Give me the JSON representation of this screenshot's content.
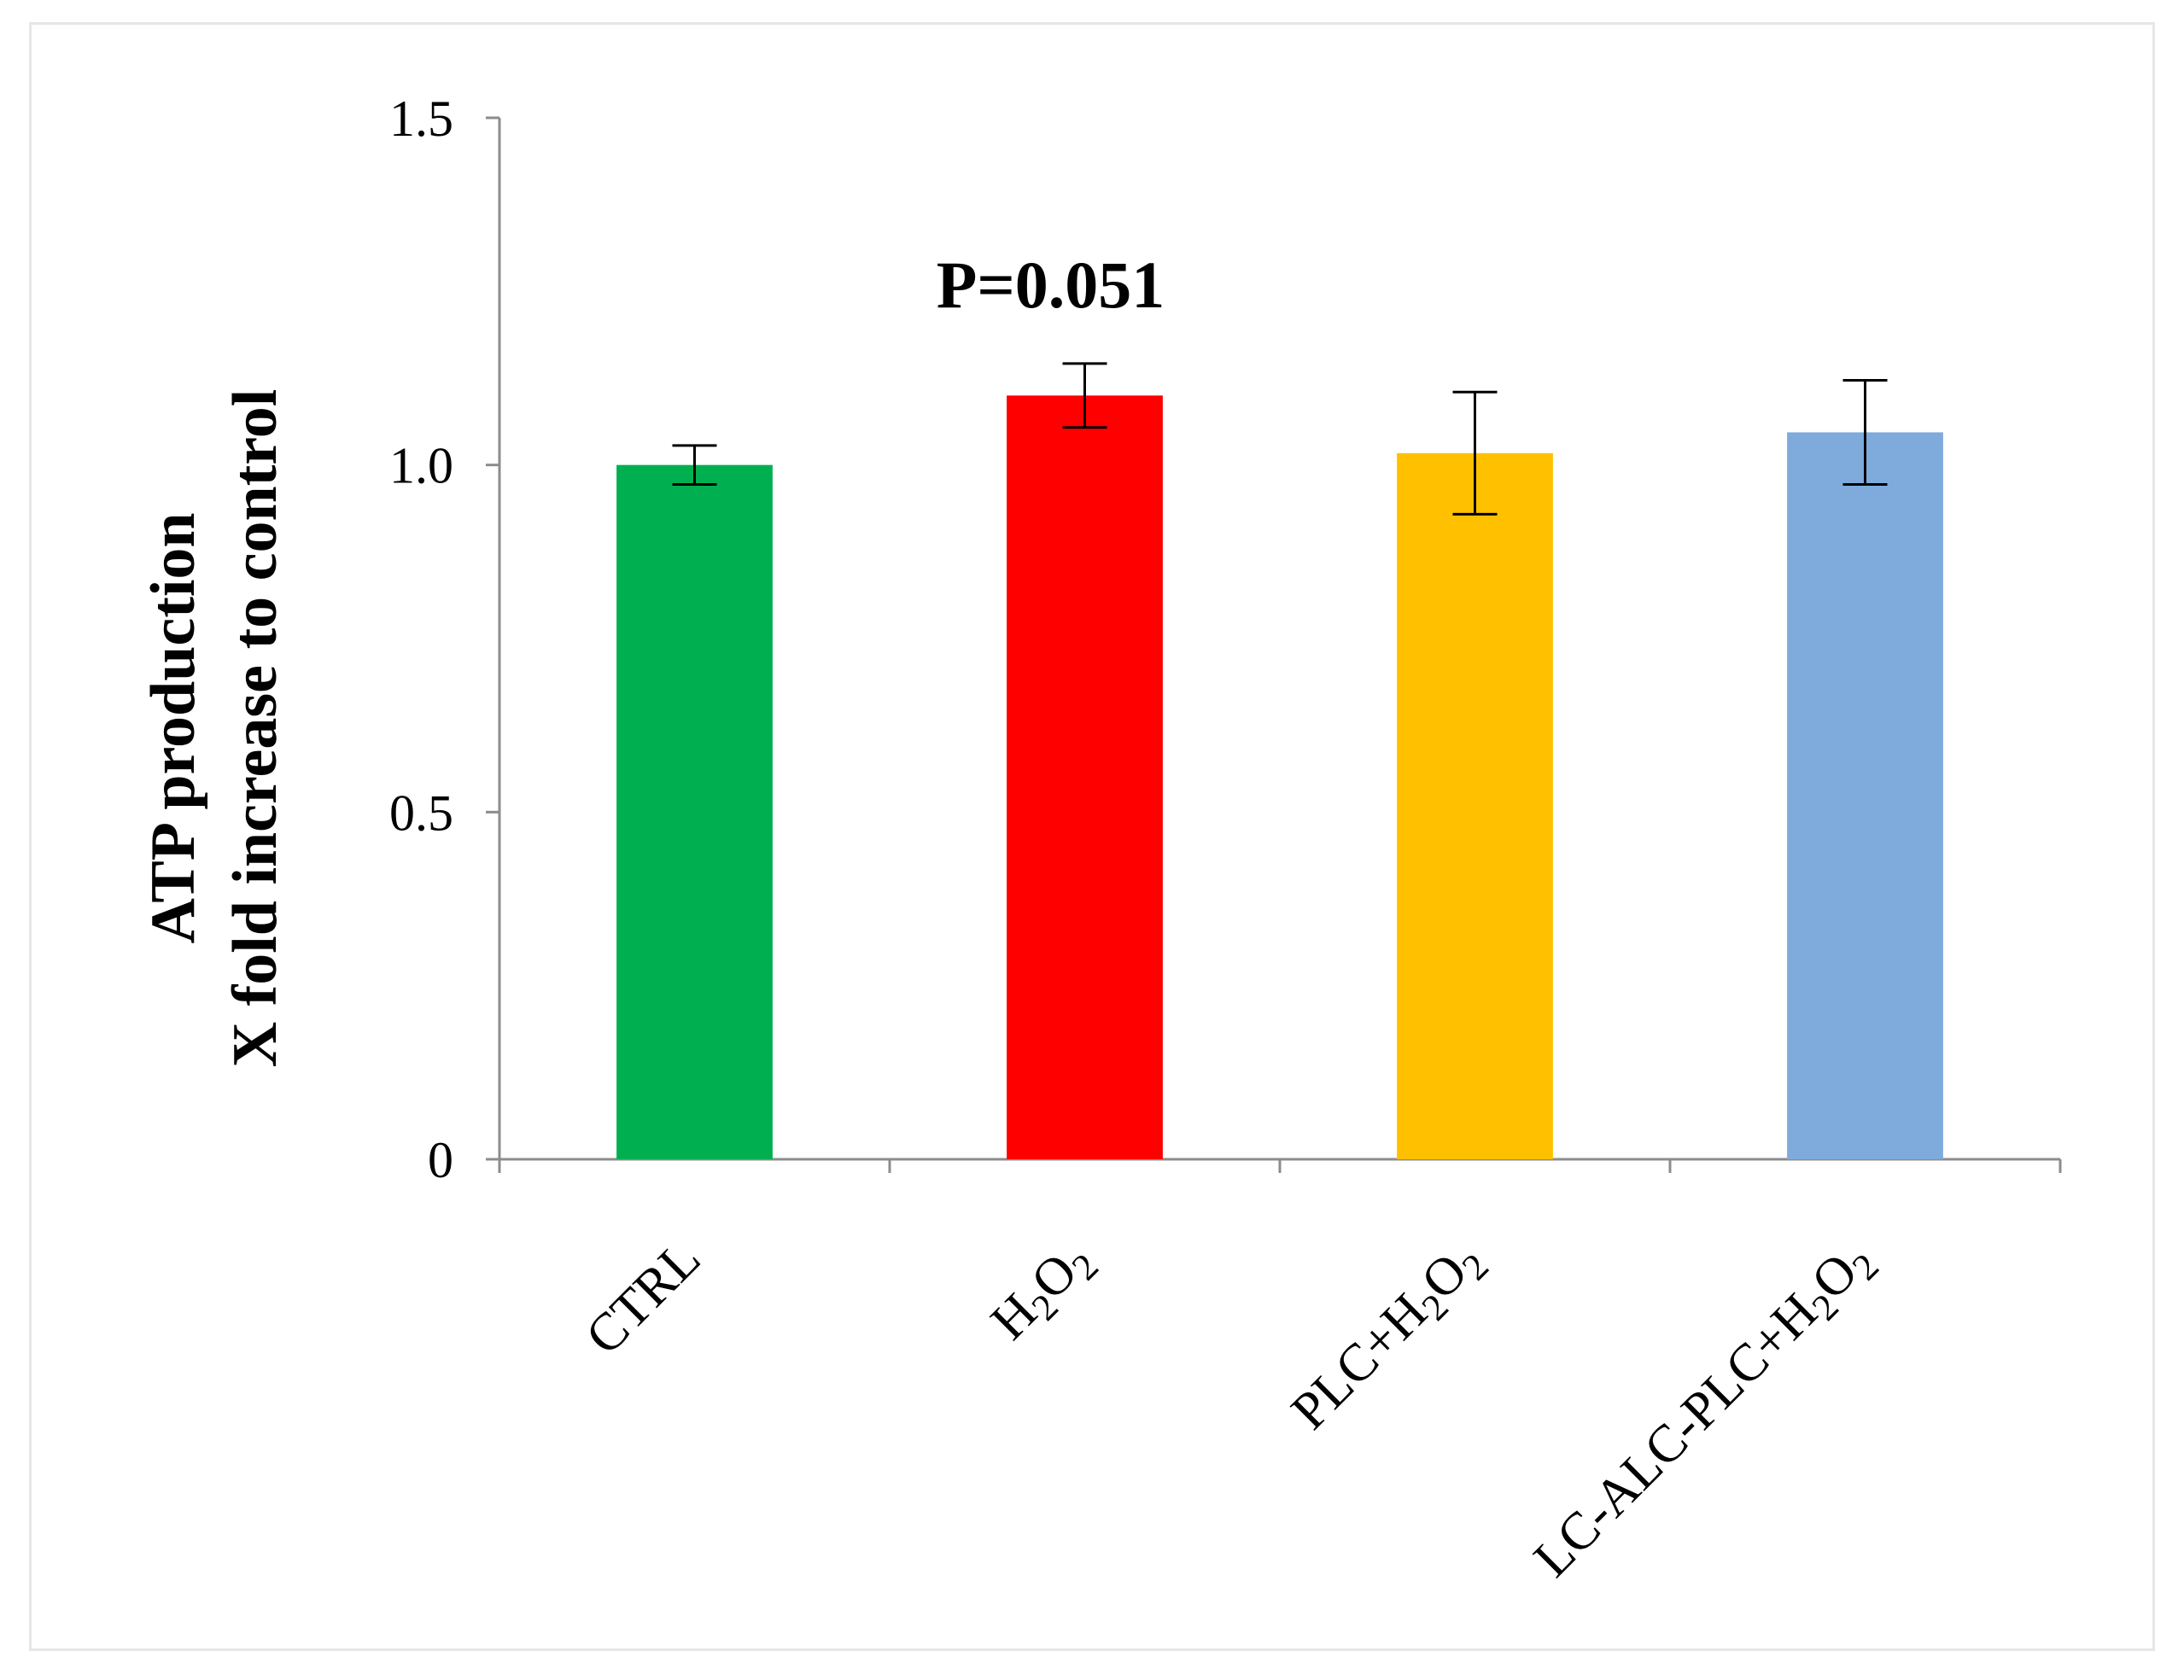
{
  "chart_data": {
    "type": "bar",
    "title": "",
    "xlabel": "",
    "ylabel": [
      "ATP production",
      "X fold increase to control"
    ],
    "ylim": [
      0,
      1.5
    ],
    "yticks": [
      0,
      0.5,
      1.0,
      1.5
    ],
    "ytick_labels": [
      "0",
      "0.5",
      "1.0",
      "1.5"
    ],
    "categories": [
      "CTRL",
      "H2O2",
      "PLC+H2O2",
      "LC-ALC-PLC+H2O2"
    ],
    "category_labels": [
      [
        {
          "t": "CTRL",
          "s": false
        }
      ],
      [
        {
          "t": "H",
          "s": false
        },
        {
          "t": "2",
          "s": true
        },
        {
          "t": "O",
          "s": false
        },
        {
          "t": "2",
          "s": true
        }
      ],
      [
        {
          "t": "PLC+H",
          "s": false
        },
        {
          "t": "2",
          "s": true
        },
        {
          "t": "O",
          "s": false
        },
        {
          "t": "2",
          "s": true
        }
      ],
      [
        {
          "t": "LC-ALC-PLC+H",
          "s": false
        },
        {
          "t": "2",
          "s": true
        },
        {
          "t": "O",
          "s": false
        },
        {
          "t": "2",
          "s": true
        }
      ]
    ],
    "values": [
      1.0,
      1.1,
      1.017,
      1.047
    ],
    "error": [
      0.028,
      0.046,
      0.088,
      0.075
    ],
    "colors": [
      "#00b050",
      "#ff0000",
      "#ffc000",
      "#7faadc"
    ],
    "annotations": [
      {
        "category_index": 1,
        "text": "P=0.051"
      }
    ],
    "grid": false,
    "legend": "none"
  }
}
